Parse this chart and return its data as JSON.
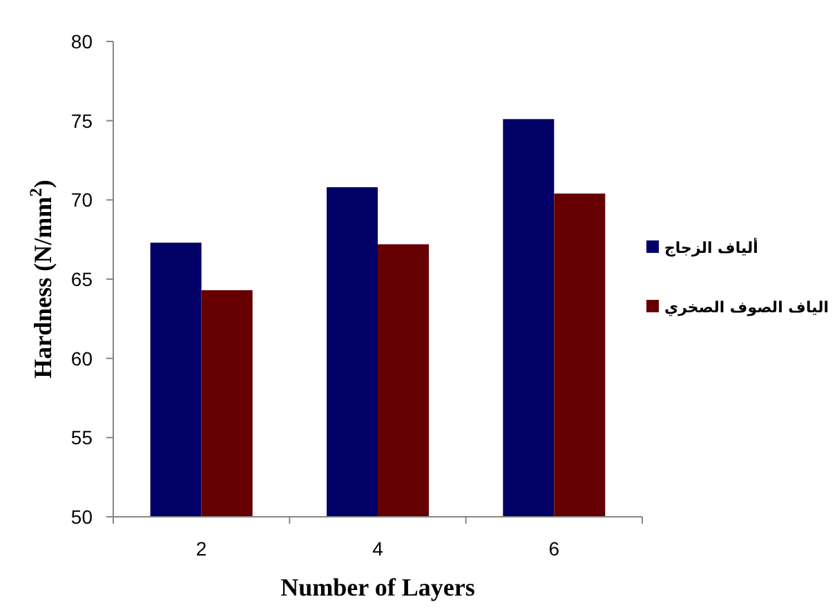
{
  "chart_data": {
    "type": "bar",
    "xlabel": "Number of Layers",
    "ylabel": "Hardness (N/mm$^{2}$)",
    "categories": [
      "2",
      "4",
      "6"
    ],
    "series": [
      {
        "name": "ألياف الزجاج",
        "color": "#000066",
        "values": [
          67.3,
          70.8,
          75.1
        ]
      },
      {
        "name": "الياف الصوف الصخري",
        "color": "#660000",
        "values": [
          64.3,
          67.2,
          70.4
        ]
      }
    ],
    "ylim": [
      50,
      80
    ],
    "yticks": [
      50,
      55,
      60,
      65,
      70,
      75,
      80
    ],
    "grid": false,
    "legend": "right"
  }
}
